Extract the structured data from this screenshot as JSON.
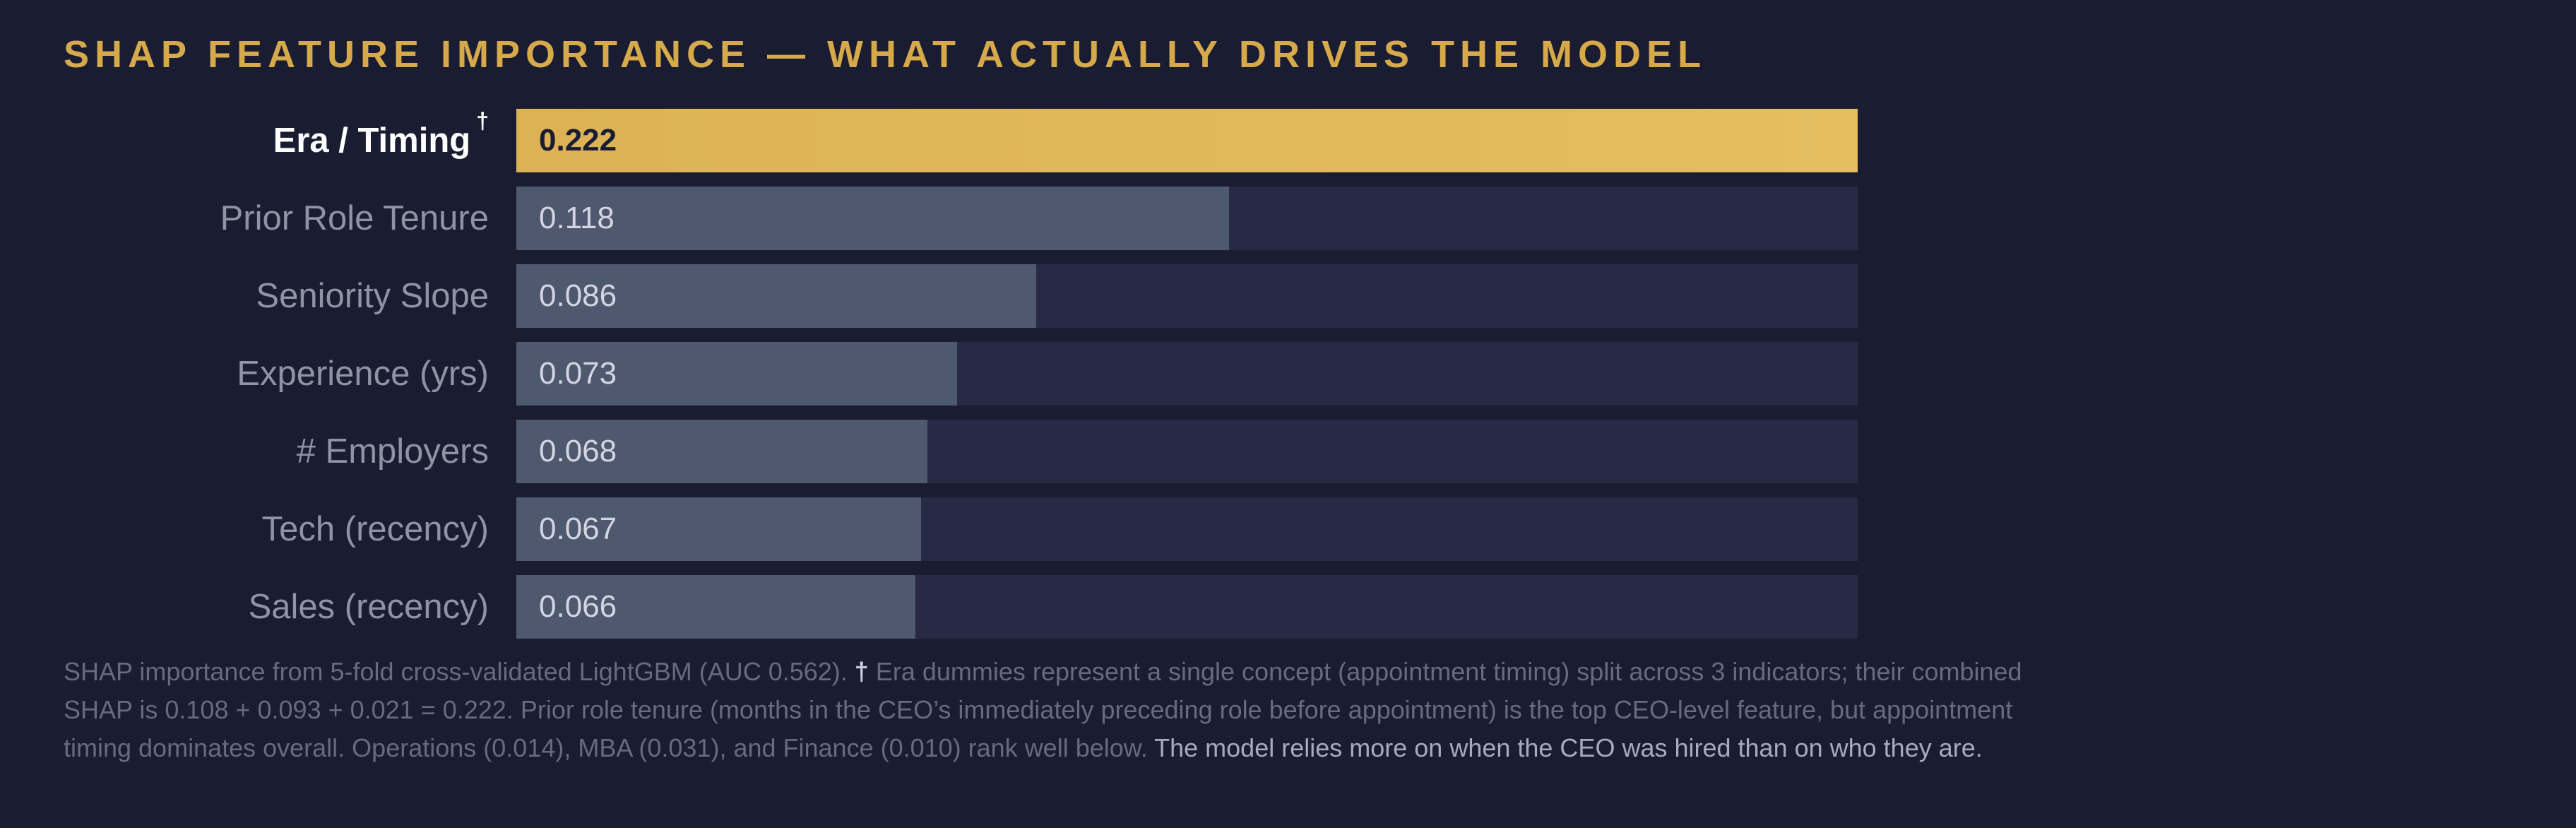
{
  "chart_data": {
    "type": "bar",
    "orientation": "horizontal",
    "title": "SHAP FEATURE IMPORTANCE — WHAT ACTUALLY DRIVES THE MODEL",
    "categories": [
      "Era / Timing †",
      "Prior Role Tenure",
      "Seniority Slope",
      "Experience (yrs)",
      "# Employers",
      "Tech (recency)",
      "Sales (recency)"
    ],
    "values": [
      0.222,
      0.118,
      0.086,
      0.073,
      0.068,
      0.067,
      0.066
    ],
    "value_labels": [
      "0.222",
      "0.118",
      "0.086",
      "0.073",
      "0.068",
      "0.067",
      "0.066"
    ],
    "xlabel": "",
    "ylabel": "",
    "xlim": [
      0,
      0.222
    ],
    "grid": false,
    "legend": false,
    "highlight_index": 0,
    "dagger": "†"
  },
  "colors": {
    "background": "#1a1c31",
    "bar_track": "#262a44",
    "bar_default": "#4e5970",
    "bar_highlight_start": "#dcb254",
    "bar_highlight_end": "#e5be62",
    "title_gold": "#d6a94a",
    "label_default": "#8f94a5",
    "label_highlight": "#ffffff",
    "value_on_gold": "#191c33",
    "value_on_slate": "#d3d6e0",
    "footer_text": "#666b81",
    "footer_emphasis": "#a6abbf"
  },
  "footer": {
    "line1": {
      "pre": "SHAP importance from 5-fold cross-validated LightGBM (AUC 0.562). ",
      "dagger": "†",
      "post": " Era dummies represent a single concept (appointment timing) split across 3 indicators; their combined"
    },
    "line2": "SHAP is 0.108 + 0.093 + 0.021 = 0.222. Prior role tenure (months in the CEO’s immediately preceding role before appointment) is the top CEO-level feature, but appointment",
    "line3": {
      "pre": "timing dominates overall. Operations (0.014), MBA (0.031), and Finance (0.010) rank well below. ",
      "highlight": "The model relies more on when the CEO was hired than on who they are."
    }
  }
}
